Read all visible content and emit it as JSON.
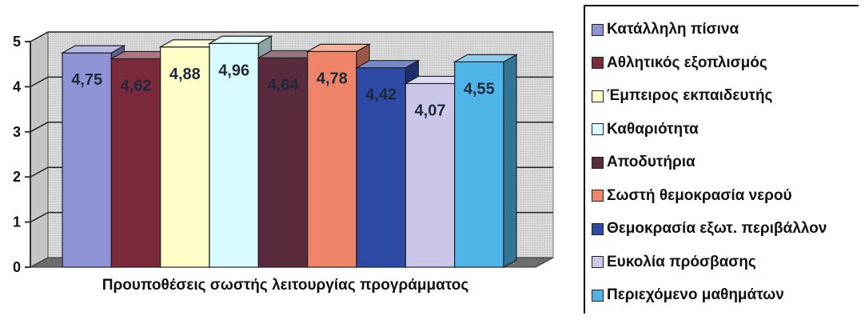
{
  "chart_data": {
    "type": "bar",
    "style": "3d-column",
    "xlabel": "Προυποθέσεις σωστής λειτουργίας προγράμματος",
    "ylabel": "",
    "ylim": [
      0,
      5
    ],
    "yticks": [
      "0",
      "1",
      "2",
      "3",
      "4",
      "5"
    ],
    "legend_position": "right",
    "series": [
      {
        "name": "Κατάλληλη πίσινα",
        "value": 4.75,
        "label": "4,75",
        "color": "#8f93d6"
      },
      {
        "name": "Αθλητικός εξοπλισμός",
        "value": 4.62,
        "label": "4,62",
        "color": "#7a2a3a"
      },
      {
        "name": "Έμπειρος εκπαιδευτής",
        "value": 4.88,
        "label": "4,88",
        "color": "#ffffc8"
      },
      {
        "name": "Καθαριότητα",
        "value": 4.96,
        "label": "4,96",
        "color": "#d8fbff"
      },
      {
        "name": "Αποδυτήρια",
        "value": 4.64,
        "label": "4,64",
        "color": "#5a2a3f"
      },
      {
        "name": "Σωστή θεμοκρασία νερού",
        "value": 4.78,
        "label": "4,78",
        "color": "#f08468"
      },
      {
        "name": "Θεμοκρασία εξωτ. περιβάλλον",
        "value": 4.42,
        "label": "4,42",
        "color": "#2c4aa6"
      },
      {
        "name": "Ευκολία πρόσβασης",
        "value": 4.07,
        "label": "4,07",
        "color": "#c9c6ea"
      },
      {
        "name": "Περιεχόμενο μαθημάτων",
        "value": 4.55,
        "label": "4,55",
        "color": "#4fb4e8"
      }
    ]
  }
}
